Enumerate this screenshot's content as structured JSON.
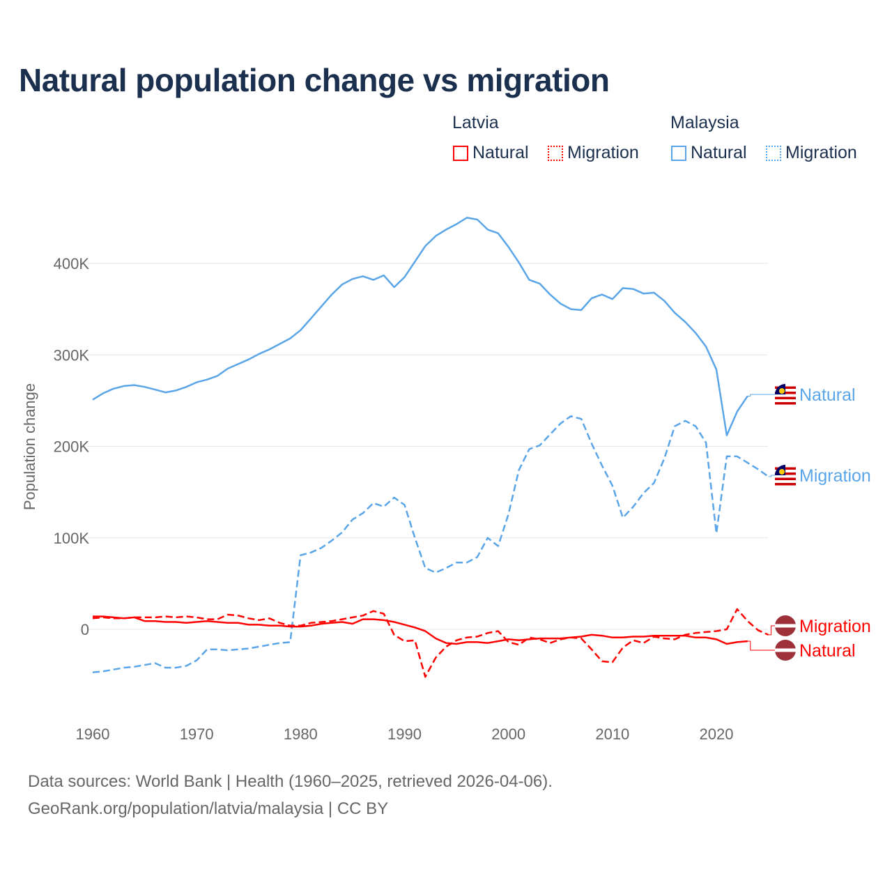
{
  "title": "Natural population change vs migration",
  "legend": {
    "groups": [
      {
        "name": "Latvia",
        "color": "#ff0000",
        "items": [
          "Natural",
          "Migration"
        ]
      },
      {
        "name": "Malaysia",
        "color": "#5aa5e8",
        "items": [
          "Natural",
          "Migration"
        ]
      }
    ]
  },
  "footer": {
    "line1": "Data sources: World Bank | Health (1960–2025, retrieved 2026-04-06).",
    "line2": "GeoRank.org/population/latvia/malaysia | CC BY"
  },
  "chart_data": {
    "type": "line",
    "title": "Natural population change vs migration",
    "xlabel": "",
    "ylabel": "Population change",
    "xlim": [
      1960,
      2025
    ],
    "ylim": [
      -85000,
      470000
    ],
    "x_ticks": [
      1960,
      1970,
      1980,
      1990,
      2000,
      2010,
      2020
    ],
    "x_tick_labels": [
      "1960",
      "1970",
      "1980",
      "1990",
      "2000",
      "2010",
      "2020"
    ],
    "y_ticks": [
      0,
      100000,
      200000,
      300000,
      400000
    ],
    "y_tick_labels": [
      "0",
      "100K",
      "200K",
      "300K",
      "400K"
    ],
    "grid": true,
    "legend_position": "top-right",
    "x_start": 1960,
    "series": [
      {
        "name": "Malaysia Natural",
        "label": "Natural",
        "country": "Malaysia",
        "color": "#5aa5e8",
        "dash": false,
        "unit": "thousands",
        "values": [
          251,
          258,
          263,
          266,
          267,
          265,
          262,
          259,
          261,
          265,
          270,
          273,
          277,
          285,
          290,
          295,
          301,
          306,
          312,
          318,
          327,
          340,
          353,
          366,
          377,
          383,
          386,
          382,
          387,
          374,
          385,
          402,
          419,
          430,
          437,
          443,
          450,
          448,
          437,
          433,
          418,
          401,
          382,
          378,
          366,
          356,
          350,
          349,
          362,
          366,
          361,
          373,
          372,
          367,
          368,
          359,
          346,
          336,
          324,
          309,
          284,
          212,
          238,
          255
        ]
      },
      {
        "name": "Malaysia Migration",
        "label": "Migration",
        "country": "Malaysia",
        "color": "#5aa5e8",
        "dash": true,
        "unit": "thousands",
        "values": [
          -47,
          -46,
          -44,
          -42,
          -41,
          -39,
          -37,
          -42,
          -42,
          -40,
          -34,
          -22,
          -22,
          -23,
          -22,
          -21,
          -19,
          -17,
          -15,
          -14,
          81,
          84,
          89,
          97,
          106,
          120,
          127,
          138,
          134,
          144,
          136,
          100,
          67,
          62,
          67,
          73,
          73,
          79,
          100,
          91,
          126,
          174,
          197,
          201,
          213,
          225,
          233,
          230,
          203,
          179,
          157,
          122,
          134,
          149,
          160,
          187,
          222,
          228,
          222,
          204,
          105,
          189,
          189,
          182,
          175,
          167
        ]
      },
      {
        "name": "Latvia Migration",
        "label": "Migration",
        "country": "Latvia",
        "color": "#ff0000",
        "dash": true,
        "unit": "thousands",
        "values": [
          12,
          13,
          12,
          12,
          13,
          13,
          13,
          14,
          13,
          14,
          13,
          11,
          11,
          16,
          15,
          12,
          10,
          12,
          7,
          4,
          4,
          7,
          8,
          9,
          11,
          13,
          15,
          20,
          17,
          -6,
          -13,
          -12,
          -52,
          -31,
          -19,
          -12,
          -9,
          -8,
          -4,
          -2,
          -14,
          -17,
          -9,
          -11,
          -15,
          -11,
          -9,
          -10,
          -22,
          -35,
          -36,
          -20,
          -12,
          -15,
          -8,
          -10,
          -11,
          -6,
          -4,
          -3,
          -2,
          0,
          22,
          9,
          -1,
          -6
        ]
      },
      {
        "name": "Latvia Natural",
        "label": "Natural",
        "country": "Latvia",
        "color": "#ff0000",
        "dash": false,
        "unit": "thousands",
        "values": [
          14,
          14,
          13,
          12,
          13,
          9,
          9,
          8,
          8,
          7,
          8,
          9,
          8,
          7,
          7,
          5,
          5,
          4,
          4,
          3,
          3,
          4,
          6,
          7,
          8,
          6,
          11,
          11,
          10,
          8,
          5,
          2,
          -2,
          -10,
          -15,
          -16,
          -14,
          -14,
          -15,
          -13,
          -11,
          -12,
          -11,
          -10,
          -10,
          -10,
          -9,
          -8,
          -6,
          -7,
          -9,
          -9,
          -8,
          -8,
          -7,
          -7,
          -7,
          -7,
          -9,
          -9,
          -11,
          -16,
          -14,
          -13
        ]
      }
    ]
  }
}
